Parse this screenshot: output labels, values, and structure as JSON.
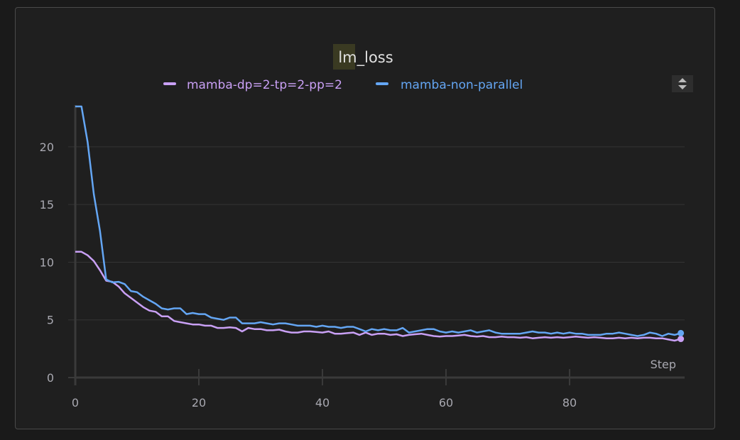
{
  "chart_data": {
    "type": "line",
    "title": "lm_loss",
    "xlabel": "Step",
    "ylabel": "",
    "xlim": [
      0,
      98.5
    ],
    "ylim": [
      0,
      23.5
    ],
    "x_ticks": [
      "0",
      "20",
      "40",
      "60",
      "80"
    ],
    "y_ticks": [
      "0",
      "5",
      "10",
      "15",
      "20"
    ],
    "grid": true,
    "legend_position": "top",
    "series": [
      {
        "name": "mamba-dp=2-tp=2-pp=2",
        "color": "#c9a0f5",
        "values": [
          10.9,
          10.9,
          10.6,
          10.1,
          9.3,
          8.4,
          8.3,
          7.9,
          7.3,
          6.9,
          6.5,
          6.1,
          5.8,
          5.7,
          5.3,
          5.3,
          4.9,
          4.8,
          4.7,
          4.6,
          4.6,
          4.5,
          4.5,
          4.3,
          4.3,
          4.35,
          4.3,
          4.0,
          4.3,
          4.2,
          4.2,
          4.1,
          4.1,
          4.15,
          4.0,
          3.9,
          3.9,
          4.0,
          4.0,
          3.95,
          3.9,
          4.0,
          3.8,
          3.8,
          3.85,
          3.9,
          3.7,
          3.9,
          3.7,
          3.8,
          3.8,
          3.7,
          3.75,
          3.6,
          3.7,
          3.75,
          3.8,
          3.7,
          3.6,
          3.55,
          3.6,
          3.6,
          3.65,
          3.7,
          3.6,
          3.55,
          3.6,
          3.5,
          3.5,
          3.55,
          3.5,
          3.5,
          3.45,
          3.5,
          3.4,
          3.45,
          3.5,
          3.45,
          3.5,
          3.45,
          3.5,
          3.55,
          3.5,
          3.45,
          3.5,
          3.45,
          3.4,
          3.4,
          3.45,
          3.4,
          3.45,
          3.4,
          3.45,
          3.45,
          3.4,
          3.4,
          3.3,
          3.2,
          3.35
        ]
      },
      {
        "name": "mamba-non-parallel",
        "color": "#64a6f4",
        "values": [
          23.5,
          23.5,
          20.4,
          15.9,
          12.7,
          8.5,
          8.25,
          8.3,
          8.1,
          7.5,
          7.4,
          7.0,
          6.7,
          6.4,
          6.0,
          5.9,
          6.0,
          6.0,
          5.5,
          5.6,
          5.5,
          5.5,
          5.2,
          5.1,
          5.0,
          5.2,
          5.2,
          4.7,
          4.7,
          4.7,
          4.8,
          4.7,
          4.6,
          4.7,
          4.7,
          4.6,
          4.5,
          4.5,
          4.5,
          4.4,
          4.5,
          4.4,
          4.4,
          4.3,
          4.4,
          4.4,
          4.2,
          4.0,
          4.2,
          4.1,
          4.2,
          4.1,
          4.1,
          4.3,
          3.9,
          4.0,
          4.1,
          4.2,
          4.2,
          4.0,
          3.9,
          4.0,
          3.9,
          4.0,
          4.1,
          3.9,
          4.0,
          4.1,
          3.9,
          3.8,
          3.8,
          3.8,
          3.8,
          3.9,
          4.0,
          3.9,
          3.9,
          3.8,
          3.9,
          3.8,
          3.9,
          3.8,
          3.8,
          3.7,
          3.7,
          3.7,
          3.8,
          3.8,
          3.9,
          3.8,
          3.7,
          3.6,
          3.7,
          3.9,
          3.8,
          3.6,
          3.8,
          3.7,
          3.85
        ]
      }
    ]
  }
}
